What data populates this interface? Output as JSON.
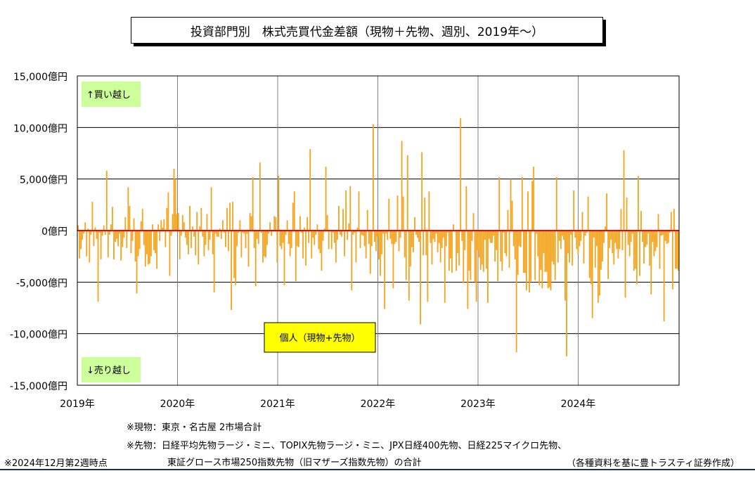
{
  "title": "投資部門別　株式売買代金差額（現物＋先物、週別、2019年～）",
  "chart_data": {
    "type": "bar",
    "title": "投資部門別　株式売買代金差額（現物＋先物、週別、2019年～）",
    "xlabel": "",
    "ylabel": "",
    "unit": "億円",
    "ylim": [
      -15000,
      15000
    ],
    "y_ticks": [
      15000,
      10000,
      5000,
      0,
      -5000,
      -10000,
      -15000
    ],
    "y_tick_labels": [
      "15,000億円",
      "10,000億円",
      "5,000億円",
      "0億円",
      "-5,000億円",
      "-10,000億円",
      "-15,000億円"
    ],
    "x_ticks": [
      "2019年",
      "2020年",
      "2021年",
      "2022年",
      "2023年",
      "2024年"
    ],
    "grid": true,
    "bar_color": "#f5a31a",
    "zero_line_color": "#ff0000",
    "series": [
      {
        "name": "個人（現物+先物）",
        "values": [
          500,
          -2700,
          -1800,
          -900,
          -300,
          800,
          -2500,
          200,
          -3100,
          -400,
          2800,
          -1500,
          300,
          -800,
          -6900,
          -200,
          -2800,
          -500,
          500,
          -400,
          5800,
          -2600,
          -400,
          600,
          2300,
          -2800,
          -1100,
          -800,
          -1500,
          -300,
          -2900,
          -1600,
          -700,
          1300,
          -1700,
          4200,
          2400,
          -2200,
          -1000,
          1200,
          -3000,
          -6100,
          -2500,
          -1800,
          900,
          2100,
          -1400,
          -3500,
          -2300,
          -3300,
          -3200,
          -2500,
          600,
          -1900,
          -2200,
          -3700,
          600,
          -1000,
          1000,
          300,
          1100,
          -1600,
          2200,
          3700,
          -4400,
          -500,
          1600,
          6000,
          5000,
          1600,
          1700,
          -2800,
          -500,
          1500,
          800,
          -700,
          -1400,
          -2300,
          2400,
          -1700,
          400,
          -600,
          -2400,
          1800,
          -3300,
          400,
          2200,
          -600,
          -2500,
          -1400,
          1600,
          -1900,
          -900,
          4200,
          -2300,
          -6000,
          -300,
          -600,
          -600,
          200,
          -800,
          1000,
          -200,
          -1600,
          2200,
          -2000,
          2700,
          -7700,
          2800,
          -4600,
          -5300,
          -1500,
          -200,
          1000,
          -2600,
          -200,
          -300,
          -1700,
          -300,
          -3500,
          1700,
          1400,
          5200,
          -1700,
          -5400,
          -800,
          -1300,
          6600,
          -200,
          -3100,
          -2500,
          -2600,
          -1400,
          -300,
          800,
          -500,
          -100,
          1400,
          1300,
          -3100,
          5300,
          -1500,
          -1800,
          -1200,
          -5300,
          -400,
          1000,
          -1300,
          -2500,
          -1700,
          2700,
          3800,
          -4900,
          -1500,
          -1600,
          1400,
          -200,
          -2700,
          300,
          -3400,
          1300,
          -1200,
          7900,
          -2700,
          -700,
          -1400,
          -400,
          600,
          -1800,
          -2200,
          -3900,
          -1000,
          200,
          6200,
          1500,
          -1800,
          -100,
          -1800,
          -200,
          -1200,
          -3100,
          -900,
          2400,
          -400,
          -600,
          2100,
          -2500,
          3900,
          -900,
          700,
          4300,
          -5800,
          -400,
          -200,
          -3100,
          300,
          3800,
          -1700,
          -400,
          -500,
          -1500,
          -2700,
          2000,
          -1300,
          -4200,
          -1500,
          10300,
          -1100,
          -2000,
          -600,
          -2800,
          -4400,
          -2300,
          -300,
          -7600,
          -300,
          -900,
          3100,
          -800,
          -1300,
          -5600,
          -1300,
          -1100,
          3400,
          -2000,
          -700,
          8700,
          3300,
          -2600,
          -4800,
          7300,
          -6800,
          -3500,
          -1600,
          -2100,
          1300,
          -400,
          -700,
          -1100,
          -9100,
          7600,
          -2400,
          3200,
          -2400,
          -6900,
          3800,
          -1200,
          -3300,
          -800,
          -1100,
          -300,
          -2100,
          -1200,
          -3100,
          -1700,
          -700,
          -7000,
          -1500,
          -200,
          -3900,
          -2700,
          -4100,
          600,
          -100,
          -3900,
          -2200,
          -3400,
          10900,
          -1000,
          -5100,
          -1900,
          4300,
          -7600,
          -3900,
          -4800,
          -1000,
          1700,
          -5000,
          -6900,
          -1900,
          -2600,
          -3800,
          -3300,
          -4000,
          -900,
          -3700,
          -7000,
          -800,
          -1200,
          -1200,
          -500,
          -3000,
          -1900,
          -4900,
          5200,
          -3000,
          -3900,
          -200,
          -2200,
          -2500,
          2000,
          -3600,
          5000,
          2900,
          -1500,
          -2800,
          -11800,
          -4300,
          -1500,
          -1600,
          5200,
          -4100,
          -4100,
          -5800,
          3800,
          -6000,
          -4900,
          4800,
          6200,
          -4800,
          -300,
          -2500,
          -5300,
          -3800,
          -5600,
          -2200,
          -4000,
          -4000,
          -5600,
          -5500,
          -5800,
          -3000,
          -3300,
          -4800,
          5200,
          -3100,
          -1000,
          -1800,
          -500,
          -900,
          -6800,
          -12200,
          -2200,
          -3100,
          -400,
          -3400,
          3900,
          -700,
          -1800,
          -2300,
          -1500,
          -1000,
          1800,
          -3200,
          -500,
          -200,
          3300,
          -4600,
          -5200,
          -8500,
          -700,
          -3600,
          -1500,
          -7000,
          -6300,
          -3800,
          -3000,
          -1200,
          400,
          3600,
          -4700,
          -1700,
          -900,
          -2200,
          -3300,
          -1200,
          -1800,
          -2700,
          -1800,
          2100,
          -1900,
          7800,
          -6500,
          3200,
          -1400,
          -2500,
          -1100,
          -300,
          -3900,
          -3700,
          -5200,
          5300,
          -4400,
          1900,
          -1100,
          -3200,
          -1600,
          -1400,
          -300,
          -3400,
          -6200,
          -1100,
          -2500,
          -2000,
          -1600,
          1600,
          -3700,
          -500,
          -400,
          -8800,
          -1000,
          -1300,
          -1200,
          -200,
          1800,
          -5700,
          2100,
          -3700,
          -3700,
          -3900
        ]
      }
    ],
    "annotations": {
      "buy": "↑買い越し",
      "sell": "↓売り越し",
      "legend": "個人（現物+先物）"
    }
  },
  "notes": {
    "note1": "※現物：東京・名古屋  2市場合計",
    "note2": "※先物：日経平均先物ラージ・ミニ、TOPIX先物ラージ・ミニ、JPX日経400先物、日経225マイクロ先物、",
    "note3": "東証グロース市場250指数先物（旧マザーズ指数先物）の合計",
    "date_note": "※2024年12月第2週時点",
    "source": "（各種資料を基に豊トラスティ証券作成）"
  }
}
